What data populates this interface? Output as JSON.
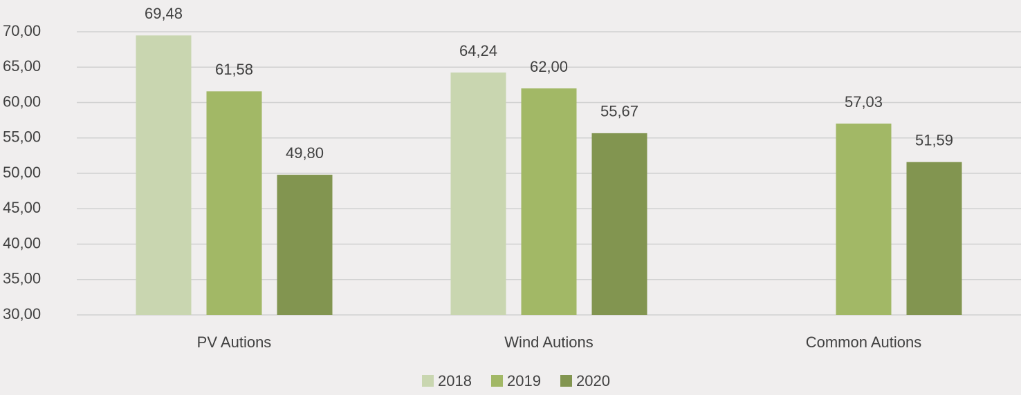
{
  "chart_data": {
    "type": "bar",
    "categories": [
      "PV Autions",
      "Wind Autions",
      "Common Autions"
    ],
    "series": [
      {
        "name": "2018",
        "color": "#c9d6b0",
        "values": [
          69.48,
          64.24,
          null
        ],
        "value_labels": [
          "69,48",
          "64,24",
          null
        ]
      },
      {
        "name": "2019",
        "color": "#a2b866",
        "values": [
          61.58,
          62.0,
          57.03
        ],
        "value_labels": [
          "61,58",
          "62,00",
          "57,03"
        ]
      },
      {
        "name": "2020",
        "color": "#829550",
        "values": [
          49.8,
          55.67,
          51.59
        ],
        "value_labels": [
          "49,80",
          "55,67",
          "51,59"
        ]
      }
    ],
    "ylim": [
      30,
      70
    ],
    "yticks": [
      {
        "value": 30,
        "label": "30,00"
      },
      {
        "value": 35,
        "label": "35,00"
      },
      {
        "value": 40,
        "label": "40,00"
      },
      {
        "value": 45,
        "label": "45,00"
      },
      {
        "value": 50,
        "label": "50,00"
      },
      {
        "value": 55,
        "label": "55,00"
      },
      {
        "value": 60,
        "label": "60,00"
      },
      {
        "value": 65,
        "label": "65,00"
      },
      {
        "value": 70,
        "label": "70,00"
      }
    ],
    "grid": true,
    "legend": "bottom"
  }
}
